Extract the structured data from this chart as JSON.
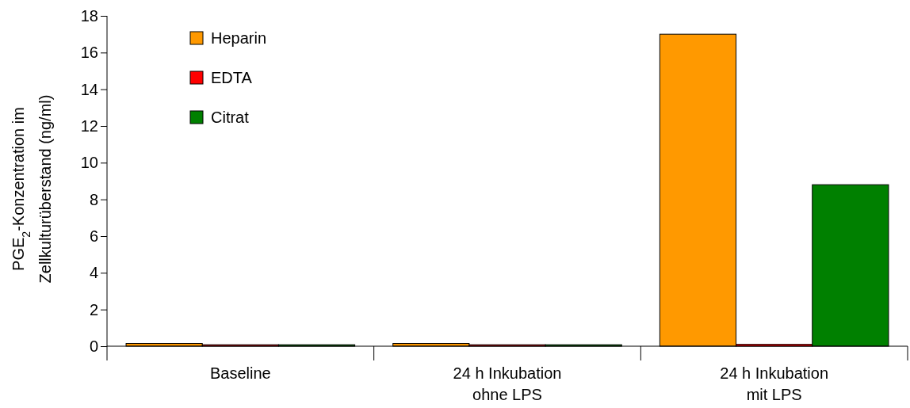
{
  "chart_data": {
    "type": "bar",
    "ylabel": "PGE$_{2}$-Konzentration im\nZellkulturüberstand (ng/ml)",
    "categories": [
      "Baseline",
      "24 h Inkubation\nohne LPS",
      "24 h Inkubation\nmit LPS"
    ],
    "series": [
      {
        "name": "Heparin",
        "color": "#ff9900",
        "values": [
          0.15,
          0.15,
          17.0
        ]
      },
      {
        "name": "EDTA",
        "color": "#ff0000",
        "values": [
          0.08,
          0.08,
          0.1
        ]
      },
      {
        "name": "Citrat",
        "color": "#008000",
        "values": [
          0.08,
          0.08,
          8.8
        ]
      }
    ],
    "ylim": [
      0,
      18
    ],
    "yticks": [
      0,
      2,
      4,
      6,
      8,
      10,
      12,
      14,
      16,
      18
    ],
    "grid": false,
    "legend": "top left"
  }
}
